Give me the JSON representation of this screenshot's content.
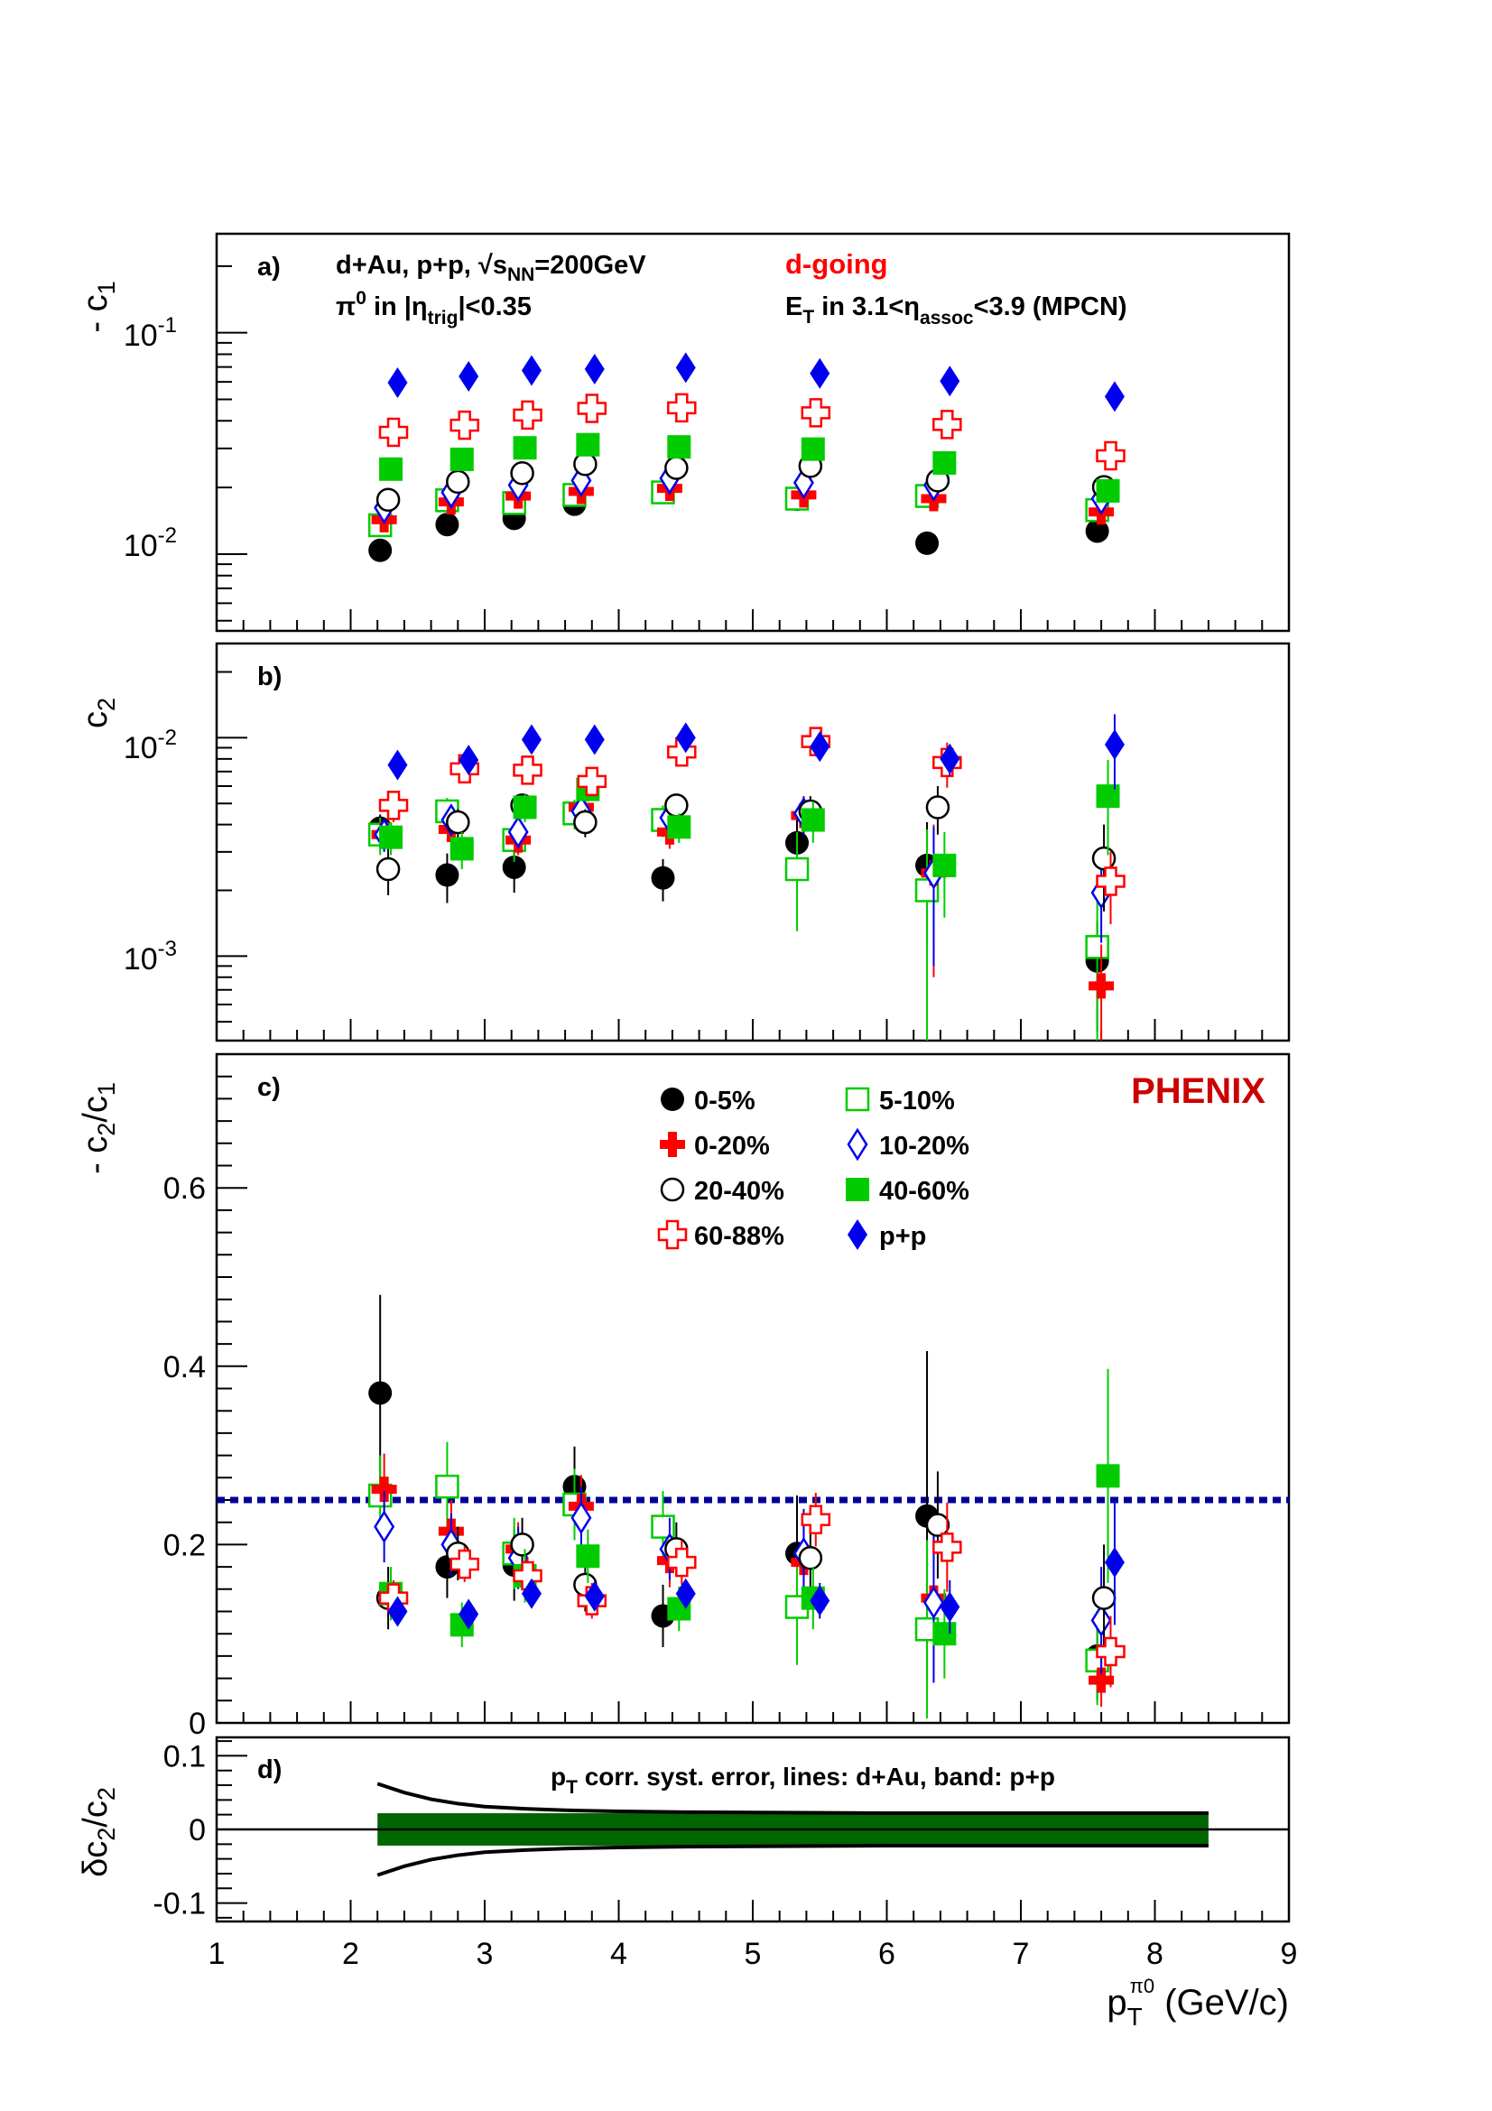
{
  "figure": {
    "collaboration": "PHENIX",
    "x_axis": {
      "label": "p",
      "label_sub": "T",
      "label_sup": "π0",
      "unit": " (GeV/c)",
      "ticks": [
        "1",
        "2",
        "3",
        "4",
        "5",
        "6",
        "7",
        "8",
        "9"
      ],
      "range": [
        1,
        9
      ]
    }
  },
  "panels": {
    "a": {
      "tag": "a)",
      "ylabel": "- c",
      "ylabel_sub": "1",
      "system_line": "d+Au, p+p, √s",
      "system_sub": "NN",
      "system_tail": "=200GeV",
      "trigger_line": "π",
      "trigger_sup": "0",
      "trigger_mid": " in |η",
      "trigger_sub": "trig",
      "trigger_tail": "|<0.35",
      "direction": "d-going",
      "et_head": "E",
      "et_sub": "T",
      "et_mid": " in 3.1<η",
      "et_sub2": "assoc",
      "et_tail": "<3.9 (MPCN)",
      "yticks": [
        {
          "base": "10",
          "exp": "-1"
        },
        {
          "base": "10",
          "exp": "-2"
        }
      ]
    },
    "b": {
      "tag": "b)",
      "ylabel": "c",
      "ylabel_sub": "2",
      "yticks": [
        {
          "base": "10",
          "exp": "-2"
        },
        {
          "base": "10",
          "exp": "-3"
        }
      ]
    },
    "c": {
      "tag": "c)",
      "ylabel": "- c",
      "ylabel_sub": "2",
      "ylabel_mid": "/c",
      "ylabel_sub2": "1",
      "yticks": [
        "0",
        "0.2",
        "0.4",
        "0.6"
      ],
      "legend": [
        "0-5%",
        "5-10%",
        "0-20%",
        "10-20%",
        "20-40%",
        "40-60%",
        "60-88%",
        "p+p"
      ]
    },
    "d": {
      "tag": "d)",
      "ylabel": "δc",
      "ylabel_sub": "2",
      "ylabel_mid": "/c",
      "ylabel_sub2": "2",
      "yticks": [
        "0.1",
        "0",
        "-0.1"
      ],
      "annot_head": "p",
      "annot_sub": "T",
      "annot_tail": " corr. syst. error, lines: d+Au, band: p+p"
    }
  },
  "colors": {
    "black": "#000000",
    "red": "#ff0000",
    "green": "#00cc00",
    "blue": "#0000ee",
    "phenix": "#cc0000",
    "dashed_line": "#000099",
    "band": "#006600"
  },
  "chart_data": [
    {
      "panel": "a",
      "type": "scatter",
      "yscale": "log",
      "ylim": [
        0.0045,
        0.28
      ],
      "xlim": [
        1,
        9
      ],
      "series": [
        {
          "name": "0-5%",
          "marker": "circle-filled",
          "color": "#000000",
          "x": [
            2.22,
            2.72,
            3.22,
            3.67,
            4.33,
            5.33,
            6.3,
            7.57
          ],
          "y": [
            0.0104,
            0.0136,
            0.0145,
            0.0168,
            0.019,
            0.0177,
            0.0112,
            0.0127
          ]
        },
        {
          "name": "5-10%",
          "marker": "square-open",
          "color": "#00cc00",
          "x": [
            2.22,
            2.72,
            3.22,
            3.67,
            4.33,
            5.33,
            6.3,
            7.57
          ],
          "y": [
            0.0135,
            0.0175,
            0.017,
            0.0185,
            0.019,
            0.0178,
            0.0183,
            0.0158
          ]
        },
        {
          "name": "0-20%",
          "marker": "cross-filled",
          "color": "#ff0000",
          "x": [
            2.25,
            2.75,
            3.25,
            3.72,
            4.38,
            5.38,
            6.35,
            7.6
          ],
          "y": [
            0.0143,
            0.0172,
            0.0183,
            0.0192,
            0.0198,
            0.0185,
            0.0178,
            0.0155
          ]
        },
        {
          "name": "10-20%",
          "marker": "diamond-open",
          "color": "#0000ee",
          "x": [
            2.25,
            2.75,
            3.25,
            3.72,
            4.38,
            5.38,
            6.35,
            7.6
          ],
          "y": [
            0.0162,
            0.019,
            0.0205,
            0.0215,
            0.022,
            0.021,
            0.0205,
            0.0178
          ]
        },
        {
          "name": "20-40%",
          "marker": "circle-open",
          "color": "#000000",
          "x": [
            2.28,
            2.8,
            3.28,
            3.75,
            4.43,
            5.43,
            6.38,
            7.62
          ],
          "y": [
            0.0176,
            0.0212,
            0.0232,
            0.0255,
            0.0245,
            0.025,
            0.0215,
            0.0201
          ]
        },
        {
          "name": "40-60%",
          "marker": "square-filled",
          "color": "#00cc00",
          "x": [
            2.3,
            2.83,
            3.3,
            3.77,
            4.45,
            5.45,
            6.43,
            7.65
          ],
          "y": [
            0.0242,
            0.0268,
            0.0302,
            0.0312,
            0.0305,
            0.0298,
            0.0258,
            0.0193
          ]
        },
        {
          "name": "60-88%",
          "marker": "cross-open",
          "color": "#ff0000",
          "x": [
            2.32,
            2.85,
            3.32,
            3.8,
            4.47,
            5.47,
            6.45,
            7.67
          ],
          "y": [
            0.0355,
            0.0382,
            0.0425,
            0.0455,
            0.0458,
            0.0435,
            0.0385,
            0.0278
          ]
        },
        {
          "name": "p+p",
          "marker": "diamond-filled",
          "color": "#0000ee",
          "x": [
            2.35,
            2.88,
            3.35,
            3.82,
            4.5,
            5.5,
            6.47,
            7.7
          ],
          "y": [
            0.0595,
            0.0635,
            0.0675,
            0.0685,
            0.0695,
            0.0655,
            0.0605,
            0.0515
          ]
        }
      ]
    },
    {
      "panel": "b",
      "type": "scatter",
      "yscale": "log",
      "ylim": [
        0.00041,
        0.027
      ],
      "xlim": [
        1,
        9
      ],
      "series": [
        {
          "name": "0-5%",
          "marker": "circle-filled",
          "color": "#000000",
          "x": [
            2.22,
            2.72,
            3.22,
            3.67,
            4.33,
            5.33,
            6.3,
            7.57
          ],
          "y": [
            0.00385,
            0.00235,
            0.00255,
            0.0045,
            0.00228,
            0.0033,
            0.0026,
            0.00095
          ],
          "err": [
            0.0006,
            0.0006,
            0.0006,
            0.0006,
            0.0005,
            0.0009,
            0.0015,
            0.0005
          ]
        },
        {
          "name": "5-10%",
          "marker": "square-open",
          "color": "#00cc00",
          "x": [
            2.22,
            2.72,
            3.22,
            3.67,
            4.33,
            5.33,
            6.3,
            7.57
          ],
          "y": [
            0.0036,
            0.0046,
            0.0034,
            0.0045,
            0.0042,
            0.0025,
            0.002,
            0.0011
          ],
          "err": [
            0.0007,
            0.0007,
            0.0007,
            0.0007,
            0.0007,
            0.0012,
            0.0018,
            0.0008
          ]
        },
        {
          "name": "0-20%",
          "marker": "cross-filled",
          "color": "#ff0000",
          "x": [
            2.25,
            2.75,
            3.25,
            3.72,
            4.38,
            5.38,
            6.35,
            7.6
          ],
          "y": [
            0.0036,
            0.0038,
            0.0034,
            0.0048,
            0.0037,
            0.0044,
            0.0024,
            0.00073
          ],
          "err": [
            0.0005,
            0.0005,
            0.0005,
            0.0006,
            0.0006,
            0.0008,
            0.0016,
            0.0004
          ]
        },
        {
          "name": "10-20%",
          "marker": "diamond-open",
          "color": "#0000ee",
          "x": [
            2.25,
            2.75,
            3.25,
            3.72,
            4.38,
            5.38,
            6.35,
            7.6
          ],
          "y": [
            0.0036,
            0.0042,
            0.0037,
            0.0046,
            0.0043,
            0.0045,
            0.0024,
            0.00195
          ],
          "err": [
            0.0006,
            0.0006,
            0.0006,
            0.0006,
            0.0006,
            0.0009,
            0.0015,
            0.0008
          ]
        },
        {
          "name": "20-40%",
          "marker": "circle-open",
          "color": "#000000",
          "x": [
            2.28,
            2.8,
            3.28,
            3.75,
            4.43,
            5.43,
            6.38,
            7.62
          ],
          "y": [
            0.0025,
            0.0041,
            0.0049,
            0.0041,
            0.0049,
            0.0046,
            0.0048,
            0.0028
          ],
          "err": [
            0.0006,
            0.0006,
            0.0006,
            0.0006,
            0.0006,
            0.0008,
            0.0012,
            0.0012
          ]
        },
        {
          "name": "40-60%",
          "marker": "square-filled",
          "color": "#00cc00",
          "x": [
            2.3,
            2.83,
            3.3,
            3.77,
            4.45,
            5.45,
            6.43,
            7.65
          ],
          "y": [
            0.0035,
            0.0031,
            0.0048,
            0.0058,
            0.0039,
            0.0042,
            0.0026,
            0.0054
          ],
          "err": [
            0.0006,
            0.0006,
            0.0007,
            0.0007,
            0.0006,
            0.0009,
            0.0011,
            0.0025
          ]
        },
        {
          "name": "60-88%",
          "marker": "cross-open",
          "color": "#ff0000",
          "x": [
            2.32,
            2.85,
            3.32,
            3.8,
            4.47,
            5.47,
            6.45,
            7.67
          ],
          "y": [
            0.0049,
            0.0072,
            0.0071,
            0.0063,
            0.0086,
            0.0096,
            0.0077,
            0.0022
          ],
          "err": [
            0.0008,
            0.0009,
            0.0009,
            0.0008,
            0.0011,
            0.0014,
            0.0018,
            0.0008
          ]
        },
        {
          "name": "p+p",
          "marker": "diamond-filled",
          "color": "#0000ee",
          "x": [
            2.35,
            2.88,
            3.35,
            3.82,
            4.5,
            5.5,
            6.47,
            7.7
          ],
          "y": [
            0.0075,
            0.0079,
            0.0098,
            0.0098,
            0.01,
            0.0091,
            0.008,
            0.0093
          ],
          "err": [
            0.0005,
            0.0005,
            0.0006,
            0.0006,
            0.0007,
            0.0009,
            0.0013,
            0.0035
          ]
        }
      ]
    },
    {
      "panel": "c",
      "type": "scatter",
      "ylim": [
        0,
        0.75
      ],
      "xlim": [
        1,
        9
      ],
      "reference_line": 0.25,
      "series": [
        {
          "name": "0-5%",
          "marker": "circle-filled",
          "color": "#000000",
          "x": [
            2.22,
            2.72,
            3.22,
            3.67,
            4.33,
            5.33,
            6.3,
            7.57
          ],
          "y": [
            0.37,
            0.175,
            0.177,
            0.265,
            0.12,
            0.19,
            0.232,
            0.075
          ],
          "err": [
            0.11,
            0.035,
            0.04,
            0.045,
            0.035,
            0.065,
            0.185,
            0.05
          ]
        },
        {
          "name": "5-10%",
          "marker": "square-open",
          "color": "#00cc00",
          "x": [
            2.22,
            2.72,
            3.22,
            3.67,
            4.33,
            5.33,
            6.3,
            7.57
          ],
          "y": [
            0.255,
            0.265,
            0.19,
            0.245,
            0.22,
            0.13,
            0.105,
            0.07
          ],
          "err": [
            0.045,
            0.05,
            0.04,
            0.04,
            0.04,
            0.065,
            0.1,
            0.05
          ]
        },
        {
          "name": "0-20%",
          "marker": "cross-filled",
          "color": "#ff0000",
          "x": [
            2.25,
            2.75,
            3.25,
            3.72,
            4.38,
            5.38,
            6.35,
            7.6
          ],
          "y": [
            0.262,
            0.215,
            0.195,
            0.243,
            0.182,
            0.18,
            0.14,
            0.048
          ],
          "err": [
            0.04,
            0.035,
            0.03,
            0.035,
            0.03,
            0.05,
            0.09,
            0.03
          ]
        },
        {
          "name": "10-20%",
          "marker": "diamond-open",
          "color": "#0000ee",
          "x": [
            2.25,
            2.75,
            3.25,
            3.72,
            4.38,
            5.38,
            6.35,
            7.6
          ],
          "y": [
            0.22,
            0.2,
            0.185,
            0.23,
            0.195,
            0.19,
            0.135,
            0.115
          ],
          "err": [
            0.04,
            0.035,
            0.035,
            0.035,
            0.035,
            0.05,
            0.09,
            0.06
          ]
        },
        {
          "name": "20-40%",
          "marker": "circle-open",
          "color": "#000000",
          "x": [
            2.28,
            2.8,
            3.28,
            3.75,
            4.43,
            5.43,
            6.38,
            7.62
          ],
          "y": [
            0.14,
            0.19,
            0.2,
            0.155,
            0.195,
            0.185,
            0.222,
            0.14
          ],
          "err": [
            0.035,
            0.03,
            0.03,
            0.03,
            0.03,
            0.04,
            0.06,
            0.06
          ]
        },
        {
          "name": "40-60%",
          "marker": "square-filled",
          "color": "#00cc00",
          "x": [
            2.3,
            2.83,
            3.3,
            3.77,
            4.45,
            5.45,
            6.43,
            7.65
          ],
          "y": [
            0.145,
            0.11,
            0.165,
            0.187,
            0.128,
            0.14,
            0.1,
            0.277
          ],
          "err": [
            0.03,
            0.025,
            0.03,
            0.03,
            0.025,
            0.035,
            0.05,
            0.12
          ]
        },
        {
          "name": "60-88%",
          "marker": "cross-open",
          "color": "#ff0000",
          "x": [
            2.32,
            2.85,
            3.32,
            3.8,
            4.47,
            5.47,
            6.45,
            7.67
          ],
          "y": [
            0.14,
            0.178,
            0.165,
            0.137,
            0.18,
            0.228,
            0.197,
            0.08
          ],
          "err": [
            0.02,
            0.02,
            0.02,
            0.02,
            0.025,
            0.03,
            0.05,
            0.04
          ]
        },
        {
          "name": "p+p",
          "marker": "diamond-filled",
          "color": "#0000ee",
          "x": [
            2.35,
            2.88,
            3.35,
            3.82,
            4.5,
            5.5,
            6.47,
            7.7
          ],
          "y": [
            0.125,
            0.122,
            0.145,
            0.142,
            0.145,
            0.137,
            0.13,
            0.18
          ],
          "err": [
            0.015,
            0.015,
            0.015,
            0.015,
            0.015,
            0.02,
            0.03,
            0.07
          ]
        }
      ]
    },
    {
      "panel": "d",
      "type": "area",
      "ylim": [
        -0.125,
        0.125
      ],
      "xlim": [
        1,
        9
      ],
      "band": {
        "x": [
          2.2,
          8.4
        ],
        "half_width": 0.022,
        "color": "#006600"
      },
      "lines": {
        "x": [
          2.2,
          2.4,
          2.6,
          2.8,
          3.0,
          3.3,
          3.6,
          4.0,
          4.5,
          5.0,
          6.0,
          7.0,
          8.0,
          8.4
        ],
        "upper": [
          0.062,
          0.05,
          0.041,
          0.035,
          0.031,
          0.028,
          0.026,
          0.0245,
          0.0235,
          0.023,
          0.022,
          0.022,
          0.022,
          0.022
        ],
        "lower": [
          -0.062,
          -0.05,
          -0.041,
          -0.035,
          -0.031,
          -0.028,
          -0.026,
          -0.0245,
          -0.0235,
          -0.023,
          -0.022,
          -0.022,
          -0.022,
          -0.022
        ]
      }
    }
  ]
}
